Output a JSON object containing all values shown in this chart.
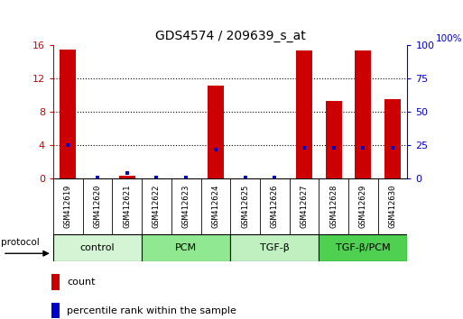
{
  "title": "GDS4574 / 209639_s_at",
  "samples": [
    "GSM412619",
    "GSM412620",
    "GSM412621",
    "GSM412622",
    "GSM412623",
    "GSM412624",
    "GSM412625",
    "GSM412626",
    "GSM412627",
    "GSM412628",
    "GSM412629",
    "GSM412630"
  ],
  "count_values": [
    15.4,
    0.05,
    0.35,
    0.05,
    0.05,
    11.1,
    0.05,
    0.05,
    15.3,
    9.3,
    15.3,
    9.5
  ],
  "percentile_values": [
    25,
    1,
    4,
    1,
    1,
    22,
    1,
    1,
    23,
    23,
    23,
    23
  ],
  "ylim_left": [
    0,
    16
  ],
  "ylim_right": [
    0,
    100
  ],
  "yticks_left": [
    0,
    4,
    8,
    12,
    16
  ],
  "yticks_right": [
    0,
    25,
    50,
    75,
    100
  ],
  "groups": [
    {
      "label": "control",
      "start": 0,
      "end": 3,
      "color": "#d4f5d4"
    },
    {
      "label": "PCM",
      "start": 3,
      "end": 6,
      "color": "#90e890"
    },
    {
      "label": "TGF-β",
      "start": 6,
      "end": 9,
      "color": "#c0f0c0"
    },
    {
      "label": "TGF-β/PCM",
      "start": 9,
      "end": 12,
      "color": "#50d050"
    }
  ],
  "protocol_label": "protocol",
  "bar_color": "#cc0000",
  "dot_color": "#0000cc",
  "left_tick_color": "#cc0000",
  "right_tick_color": "#0000cc",
  "legend_count_label": "count",
  "legend_percentile_label": "percentile rank within the sample",
  "background_color": "#ffffff",
  "plot_bg_color": "#ffffff",
  "grid_color": "#000000",
  "bar_width": 0.55,
  "sample_box_color": "#c8c8c8"
}
